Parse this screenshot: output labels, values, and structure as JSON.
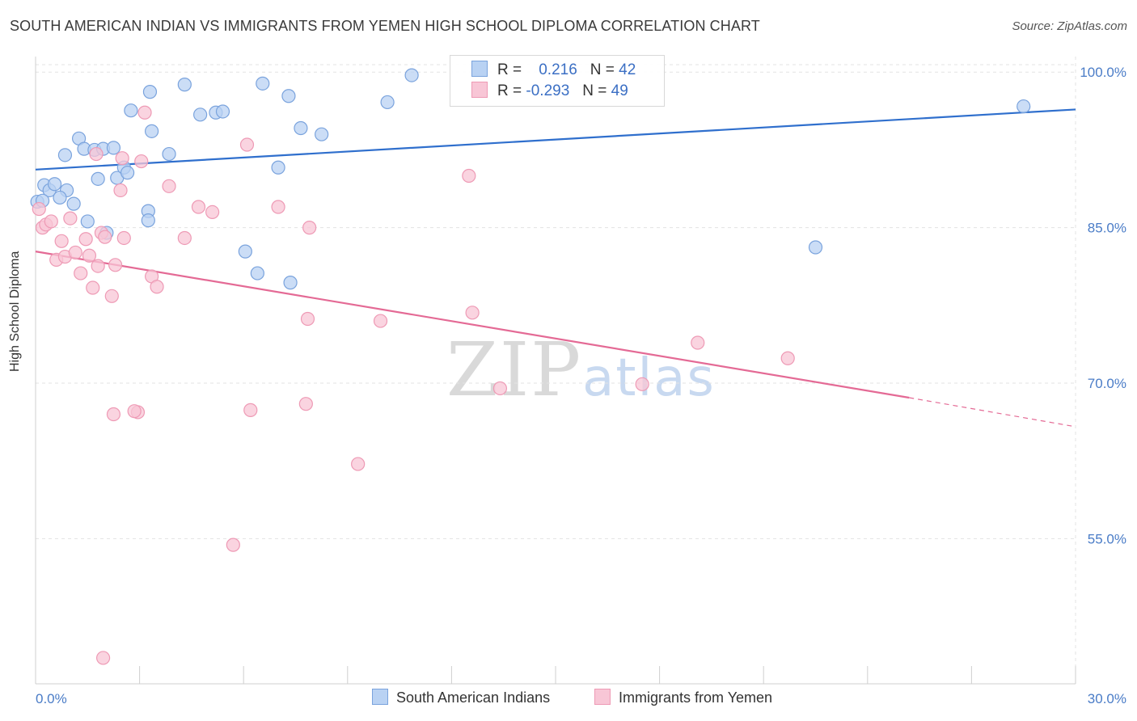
{
  "title": "SOUTH AMERICAN INDIAN VS IMMIGRANTS FROM YEMEN HIGH SCHOOL DIPLOMA CORRELATION CHART",
  "source": "Source: ZipAtlas.com",
  "watermark": {
    "zip": "ZIP",
    "atlas": "atlas"
  },
  "colors": {
    "blue_fill": "#b9d2f3",
    "blue_stroke": "#7aa3dd",
    "blue_line": "#2f6fcd",
    "pink_fill": "#f8c6d6",
    "pink_stroke": "#ee9ab5",
    "pink_line": "#e46a95",
    "axis_text": "#4a7cc7",
    "grid": "#e3e3e3"
  },
  "legend": {
    "rows": [
      {
        "r_label": "R =",
        "r_value": "0.216",
        "n_label": "N =",
        "n_value": "42"
      },
      {
        "r_label": "R =",
        "r_value": "-0.293",
        "n_label": "N =",
        "n_value": "49"
      }
    ]
  },
  "chart_data": {
    "type": "scatter",
    "title": "SOUTH AMERICAN INDIAN VS IMMIGRANTS FROM YEMEN HIGH SCHOOL DIPLOMA CORRELATION CHART",
    "xlabel": "",
    "ylabel": "High School Diploma",
    "xlim": [
      0,
      30
    ],
    "ylim": [
      41,
      101.5
    ],
    "x_tick_labels": [
      "0.0%",
      "30.0%"
    ],
    "y_ticks": [
      100,
      85,
      70,
      55
    ],
    "y_tick_labels": [
      "100.0%",
      "85.0%",
      "70.0%",
      "55.0%"
    ],
    "grid": true,
    "legend_position": "top-center",
    "series": [
      {
        "name": "South American Indians",
        "r": 0.216,
        "n": 42,
        "trend": {
          "x": [
            0,
            30
          ],
          "y": [
            90.6,
            96.4
          ]
        },
        "points": [
          {
            "x": 0.05,
            "y": 87.5
          },
          {
            "x": 0.25,
            "y": 89.1
          },
          {
            "x": 0.4,
            "y": 88.6
          },
          {
            "x": 0.55,
            "y": 89.2
          },
          {
            "x": 0.9,
            "y": 88.6
          },
          {
            "x": 0.7,
            "y": 87.9
          },
          {
            "x": 1.1,
            "y": 87.3
          },
          {
            "x": 0.85,
            "y": 92.0
          },
          {
            "x": 1.25,
            "y": 93.6
          },
          {
            "x": 1.4,
            "y": 92.6
          },
          {
            "x": 1.7,
            "y": 92.5
          },
          {
            "x": 1.95,
            "y": 92.6
          },
          {
            "x": 2.25,
            "y": 92.7
          },
          {
            "x": 1.8,
            "y": 89.7
          },
          {
            "x": 2.35,
            "y": 89.8
          },
          {
            "x": 2.55,
            "y": 90.8
          },
          {
            "x": 2.65,
            "y": 90.3
          },
          {
            "x": 2.75,
            "y": 96.3
          },
          {
            "x": 3.25,
            "y": 86.6
          },
          {
            "x": 3.25,
            "y": 85.7
          },
          {
            "x": 3.3,
            "y": 98.1
          },
          {
            "x": 3.35,
            "y": 94.3
          },
          {
            "x": 3.85,
            "y": 92.1
          },
          {
            "x": 4.3,
            "y": 98.8
          },
          {
            "x": 4.75,
            "y": 95.9
          },
          {
            "x": 5.2,
            "y": 96.1
          },
          {
            "x": 5.4,
            "y": 96.2
          },
          {
            "x": 6.05,
            "y": 82.7
          },
          {
            "x": 6.4,
            "y": 80.6
          },
          {
            "x": 6.55,
            "y": 98.9
          },
          {
            "x": 7.0,
            "y": 90.8
          },
          {
            "x": 7.3,
            "y": 97.7
          },
          {
            "x": 7.35,
            "y": 79.7
          },
          {
            "x": 7.65,
            "y": 94.6
          },
          {
            "x": 8.25,
            "y": 94.0
          },
          {
            "x": 10.15,
            "y": 97.1
          },
          {
            "x": 10.85,
            "y": 99.7
          },
          {
            "x": 1.5,
            "y": 85.6
          },
          {
            "x": 2.05,
            "y": 84.5
          },
          {
            "x": 22.5,
            "y": 83.1
          },
          {
            "x": 28.5,
            "y": 96.7
          },
          {
            "x": 0.2,
            "y": 87.6
          }
        ]
      },
      {
        "name": "Immigrants from Yemen",
        "r": -0.293,
        "n": 49,
        "trend": {
          "x": [
            0,
            25.2
          ],
          "y": [
            82.7,
            68.6
          ]
        },
        "trend_dashed": {
          "x": [
            25.2,
            30
          ],
          "y": [
            68.6,
            65.8
          ]
        },
        "points": [
          {
            "x": 0.1,
            "y": 86.8
          },
          {
            "x": 0.2,
            "y": 85.0
          },
          {
            "x": 0.3,
            "y": 85.3
          },
          {
            "x": 0.45,
            "y": 85.6
          },
          {
            "x": 0.6,
            "y": 81.9
          },
          {
            "x": 0.75,
            "y": 83.7
          },
          {
            "x": 0.85,
            "y": 82.2
          },
          {
            "x": 1.0,
            "y": 85.9
          },
          {
            "x": 1.15,
            "y": 82.6
          },
          {
            "x": 1.3,
            "y": 80.6
          },
          {
            "x": 1.45,
            "y": 83.9
          },
          {
            "x": 1.55,
            "y": 82.3
          },
          {
            "x": 1.65,
            "y": 79.2
          },
          {
            "x": 1.75,
            "y": 92.1
          },
          {
            "x": 1.8,
            "y": 81.3
          },
          {
            "x": 1.9,
            "y": 84.5
          },
          {
            "x": 2.0,
            "y": 84.1
          },
          {
            "x": 2.2,
            "y": 78.4
          },
          {
            "x": 2.3,
            "y": 81.4
          },
          {
            "x": 2.45,
            "y": 88.6
          },
          {
            "x": 2.5,
            "y": 91.7
          },
          {
            "x": 2.55,
            "y": 84.0
          },
          {
            "x": 2.95,
            "y": 67.2
          },
          {
            "x": 3.05,
            "y": 91.4
          },
          {
            "x": 3.15,
            "y": 96.1
          },
          {
            "x": 3.35,
            "y": 80.3
          },
          {
            "x": 3.5,
            "y": 79.3
          },
          {
            "x": 2.25,
            "y": 67.0
          },
          {
            "x": 2.85,
            "y": 67.3
          },
          {
            "x": 3.85,
            "y": 89.0
          },
          {
            "x": 4.3,
            "y": 84.0
          },
          {
            "x": 4.7,
            "y": 87.0
          },
          {
            "x": 5.1,
            "y": 86.5
          },
          {
            "x": 5.7,
            "y": 54.4
          },
          {
            "x": 6.1,
            "y": 93.0
          },
          {
            "x": 6.2,
            "y": 67.4
          },
          {
            "x": 7.0,
            "y": 87.0
          },
          {
            "x": 7.8,
            "y": 68.0
          },
          {
            "x": 7.85,
            "y": 76.2
          },
          {
            "x": 7.9,
            "y": 85.0
          },
          {
            "x": 9.3,
            "y": 62.2
          },
          {
            "x": 9.95,
            "y": 76.0
          },
          {
            "x": 12.5,
            "y": 90.0
          },
          {
            "x": 12.6,
            "y": 76.8
          },
          {
            "x": 13.4,
            "y": 69.5
          },
          {
            "x": 17.5,
            "y": 69.9
          },
          {
            "x": 19.1,
            "y": 73.9
          },
          {
            "x": 21.7,
            "y": 72.4
          },
          {
            "x": 1.95,
            "y": 43.5
          }
        ]
      }
    ]
  }
}
